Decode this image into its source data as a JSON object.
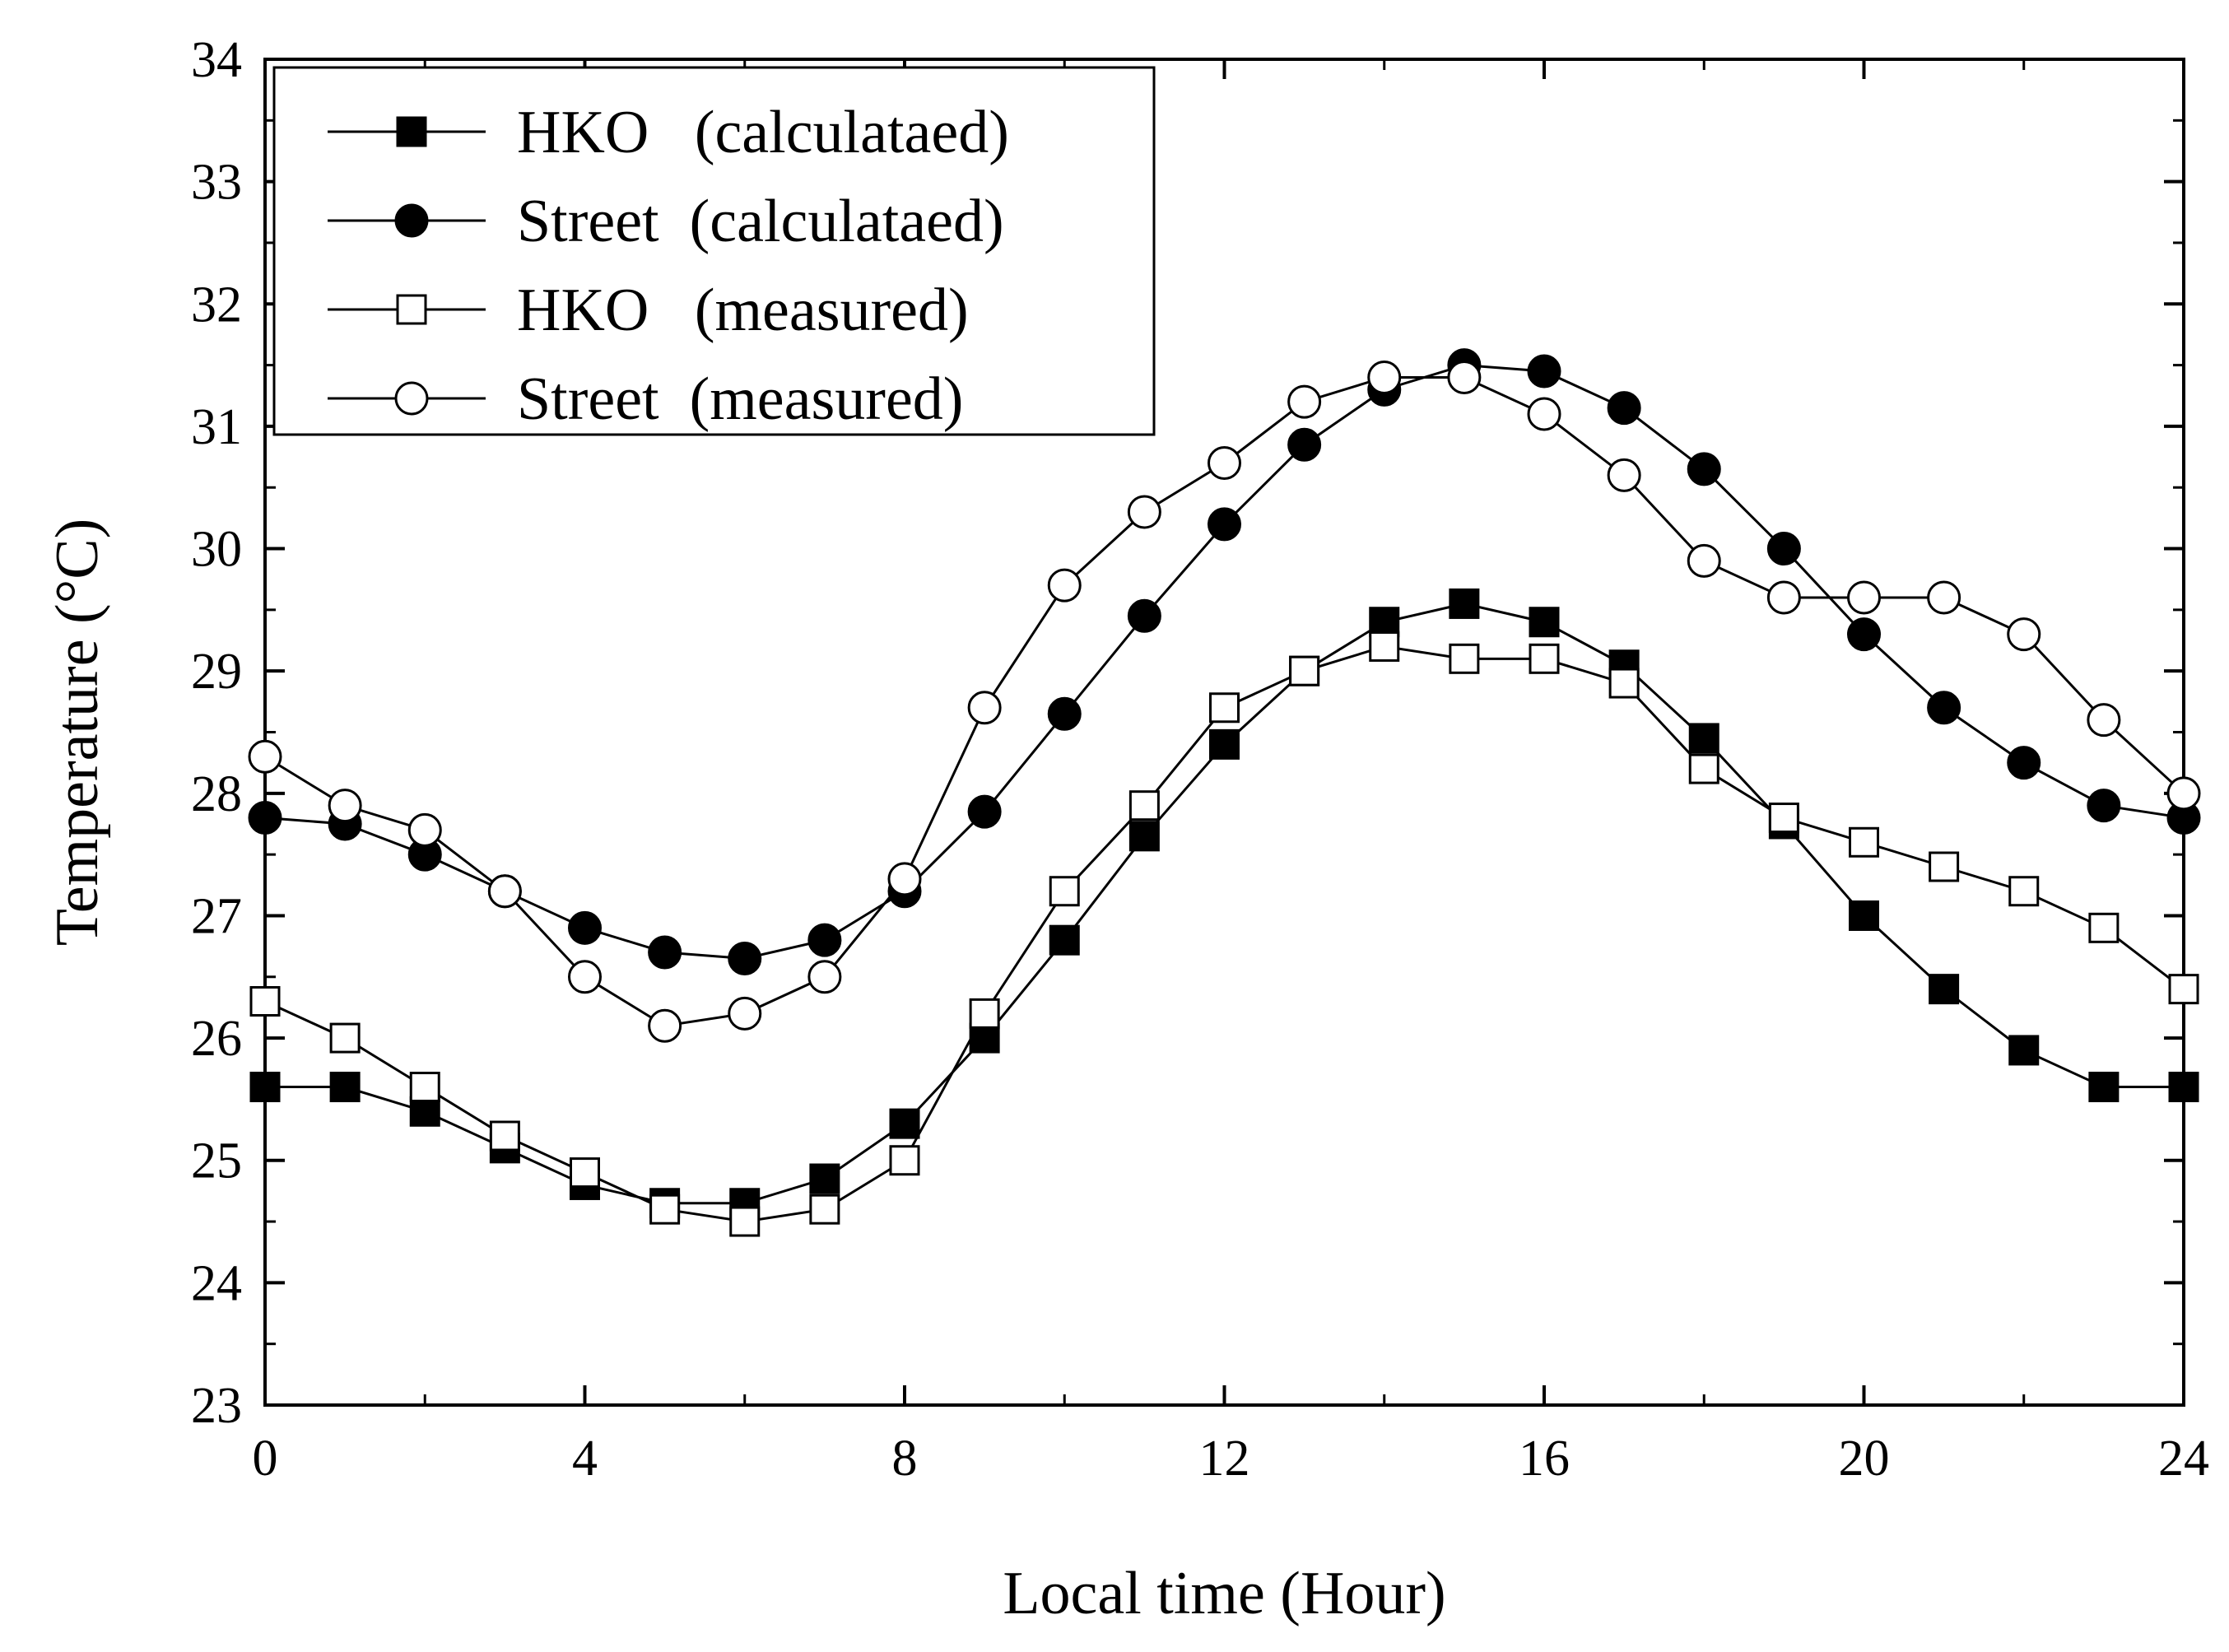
{
  "chart_data": {
    "type": "line",
    "title": "",
    "xlabel": "Local time (Hour)",
    "ylabel": "Temperature (°C)",
    "xlim": [
      0,
      24
    ],
    "ylim": [
      23,
      34
    ],
    "xticks": [
      0,
      4,
      8,
      12,
      16,
      20,
      24
    ],
    "yticks": [
      23,
      24,
      25,
      26,
      27,
      28,
      29,
      30,
      31,
      32,
      33,
      34
    ],
    "grid": false,
    "legend_position": "top-left",
    "x": [
      0,
      1,
      2,
      3,
      4,
      5,
      6,
      7,
      8,
      9,
      10,
      11,
      12,
      13,
      14,
      15,
      16,
      17,
      18,
      19,
      20,
      21,
      22,
      23,
      24
    ],
    "series": [
      {
        "name": "HKO   (calculataed)",
        "marker": "filled-square",
        "values": [
          25.6,
          25.6,
          25.4,
          25.1,
          24.8,
          24.65,
          24.65,
          24.85,
          25.3,
          26.0,
          26.8,
          27.65,
          28.4,
          29.0,
          29.4,
          29.55,
          29.4,
          29.05,
          28.45,
          27.75,
          27.0,
          26.4,
          25.9,
          25.6,
          25.6
        ]
      },
      {
        "name": "Street  (calculataed)",
        "marker": "filled-circle",
        "values": [
          27.8,
          27.75,
          27.5,
          27.2,
          26.9,
          26.7,
          26.65,
          26.8,
          27.2,
          27.85,
          28.65,
          29.45,
          30.2,
          30.85,
          31.3,
          31.5,
          31.45,
          31.15,
          30.65,
          30.0,
          29.3,
          28.7,
          28.25,
          27.9,
          27.8
        ]
      },
      {
        "name": "HKO   (measured)",
        "marker": "open-square",
        "values": [
          26.3,
          26.0,
          25.6,
          25.2,
          24.9,
          24.6,
          24.5,
          24.6,
          25.0,
          26.2,
          27.2,
          27.9,
          28.7,
          29.0,
          29.2,
          29.1,
          29.1,
          28.9,
          28.2,
          27.8,
          27.6,
          27.4,
          27.2,
          26.9,
          26.4
        ]
      },
      {
        "name": "Street  (measured)",
        "marker": "open-circle",
        "values": [
          28.3,
          27.9,
          27.7,
          27.2,
          26.5,
          26.1,
          26.2,
          26.5,
          27.3,
          28.7,
          29.7,
          30.3,
          30.7,
          31.2,
          31.4,
          31.4,
          31.1,
          30.6,
          29.9,
          29.6,
          29.6,
          29.6,
          29.3,
          28.6,
          28.0
        ]
      }
    ]
  }
}
